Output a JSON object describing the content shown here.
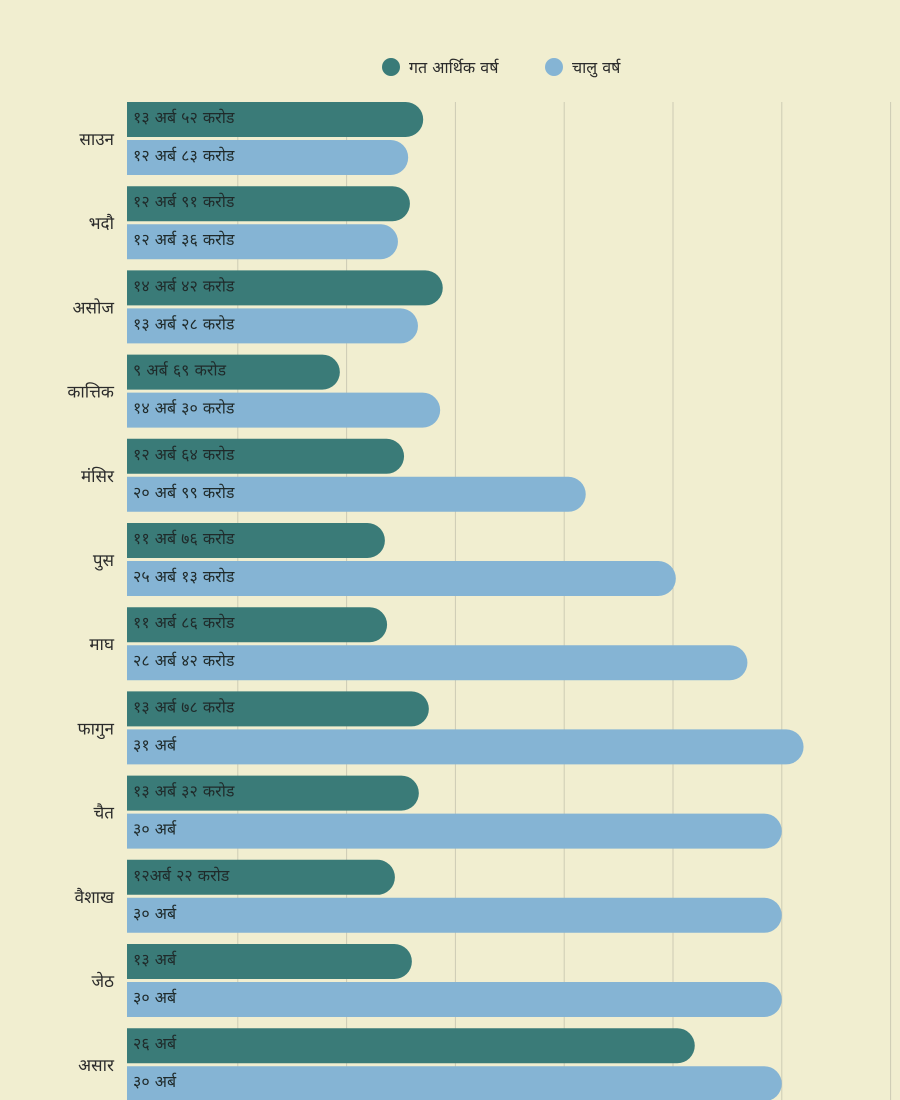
{
  "chart_data": {
    "type": "bar",
    "orientation": "horizontal",
    "categories": [
      "साउन",
      "भदौ",
      "असोज",
      "कात्तिक",
      "मंसिर",
      "पुस",
      "माघ",
      "फागुन",
      "चैत",
      "वैशाख",
      "जेठ",
      "असार"
    ],
    "series": [
      {
        "name": "गत आर्थिक वर्ष",
        "color": "#3a7b78",
        "values": [
          13.52,
          12.91,
          14.42,
          9.69,
          12.64,
          11.76,
          11.86,
          13.78,
          13.32,
          12.22,
          13,
          26
        ],
        "labels": [
          "१३ अर्ब ५२ करोड",
          "१२ अर्ब ९१ करोड",
          "१४ अर्ब ४२ करोड",
          "९ अर्ब ६९ करोड",
          "१२ अर्ब ६४ करोड",
          "११ अर्ब ७६ करोड",
          "११ अर्ब ८६ करोड",
          "१३ अर्ब ७८ करोड",
          "१३ अर्ब ३२ करोड",
          "१२अर्ब २२ करोड",
          "१३ अर्ब",
          "२६ अर्ब"
        ]
      },
      {
        "name": "चालु वर्ष",
        "color": "#85b4d4",
        "values": [
          12.83,
          12.36,
          13.28,
          14.3,
          20.99,
          25.13,
          28.42,
          31,
          30,
          30,
          30,
          30
        ],
        "labels": [
          "१२ अर्ब ८३ करोड",
          "१२ अर्ब ३६ करोड",
          "१३ अर्ब २८ करोड",
          "१४ अर्ब ३० करोड",
          "२० अर्ब ९९ करोड",
          "२५ अर्ब १३ करोड",
          "२८ अर्ब ४२ करोड",
          "३१ अर्ब",
          "३० अर्ब",
          "३० अर्ब",
          "३० अर्ब",
          "३० अर्ब"
        ]
      }
    ],
    "xlim": [
      0,
      35
    ],
    "grid": true,
    "legend": "top-center",
    "background": "#f1eed0",
    "gridColor": "#cdcbb4"
  }
}
